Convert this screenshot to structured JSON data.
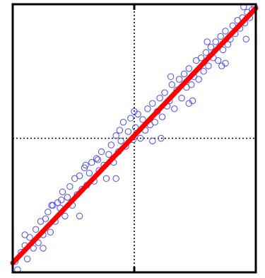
{
  "chart_data": {
    "type": "scatter",
    "title": "",
    "xlabel": "",
    "ylabel": "",
    "xlim": [
      -1,
      1
    ],
    "ylim": [
      -1,
      1
    ],
    "grid": false,
    "reference_lines": {
      "x": 0,
      "y": 0,
      "style": "dotted"
    },
    "colors": {
      "points": "#4a4aff",
      "fit": "#ff0000",
      "axes": "#000000",
      "background": "#ffffff"
    },
    "fit_line": {
      "slope": 0.95,
      "intercept": 0.02,
      "x_range": [
        -1,
        1
      ]
    },
    "series": [
      {
        "marker": "open-circle",
        "x": [
          -0.98,
          -0.96,
          -0.93,
          -0.9,
          -0.88,
          -0.86,
          -0.83,
          -0.81,
          -0.79,
          -0.77,
          -0.75,
          -0.73,
          -0.71,
          -0.69,
          -0.67,
          -0.65,
          -0.63,
          -0.61,
          -0.59,
          -0.57,
          -0.55,
          -0.53,
          -0.51,
          -0.49,
          -0.47,
          -0.45,
          -0.43,
          -0.41,
          -0.39,
          -0.37,
          -0.35,
          -0.33,
          -0.31,
          -0.29,
          -0.27,
          -0.25,
          -0.23,
          -0.21,
          -0.19,
          -0.17,
          -0.15,
          -0.13,
          -0.11,
          -0.09,
          -0.07,
          -0.05,
          -0.03,
          -0.01,
          0.01,
          0.03,
          0.05,
          0.07,
          0.09,
          0.11,
          0.13,
          0.15,
          0.17,
          0.19,
          0.21,
          0.23,
          0.25,
          0.27,
          0.29,
          0.31,
          0.33,
          0.35,
          0.37,
          0.39,
          0.41,
          0.43,
          0.45,
          0.47,
          0.49,
          0.51,
          0.53,
          0.55,
          0.57,
          0.59,
          0.61,
          0.63,
          0.65,
          0.67,
          0.69,
          0.71,
          0.73,
          0.75,
          0.77,
          0.79,
          0.81,
          0.83,
          0.85,
          0.87,
          0.89,
          0.91,
          0.93,
          0.95,
          0.97,
          0.99,
          -0.9,
          -0.75,
          -0.6,
          -0.45,
          -0.3,
          -0.15,
          0.0,
          0.15,
          0.3,
          0.45,
          0.6,
          0.75,
          0.9,
          -0.68,
          -0.4,
          -0.12,
          0.22,
          0.48,
          0.72,
          0.92
        ],
        "y": [
          -0.92,
          -0.98,
          -0.85,
          -0.8,
          -0.9,
          -0.74,
          -0.82,
          -0.68,
          -0.78,
          -0.62,
          -0.72,
          -0.6,
          -0.55,
          -0.7,
          -0.5,
          -0.62,
          -0.48,
          -0.52,
          -0.4,
          -0.58,
          -0.44,
          -0.36,
          -0.5,
          -0.3,
          -0.42,
          -0.28,
          -0.38,
          -0.22,
          -0.35,
          -0.26,
          -0.18,
          -0.32,
          -0.15,
          -0.24,
          -0.1,
          -0.2,
          -0.3,
          -0.12,
          -0.05,
          -0.18,
          0.02,
          -0.1,
          -0.02,
          0.12,
          -0.06,
          0.05,
          0.15,
          -0.01,
          0.08,
          0.18,
          0.0,
          0.14,
          0.06,
          0.22,
          0.1,
          0.26,
          0.12,
          0.2,
          0.3,
          0.16,
          0.34,
          0.24,
          0.28,
          0.4,
          0.22,
          0.36,
          0.44,
          0.3,
          0.48,
          0.38,
          0.52,
          0.4,
          0.46,
          0.58,
          0.44,
          0.6,
          0.5,
          0.64,
          0.54,
          0.68,
          0.6,
          0.72,
          0.58,
          0.76,
          0.66,
          0.8,
          0.7,
          0.74,
          0.84,
          0.78,
          0.88,
          0.82,
          0.9,
          0.86,
          0.94,
          0.9,
          0.96,
          0.98,
          -0.72,
          -0.82,
          -0.46,
          -0.58,
          -0.16,
          -0.3,
          0.2,
          -0.02,
          0.46,
          0.26,
          0.72,
          0.56,
          0.98,
          -0.5,
          -0.2,
          0.06,
          0.0,
          0.28,
          0.54,
          0.74
        ]
      }
    ]
  }
}
